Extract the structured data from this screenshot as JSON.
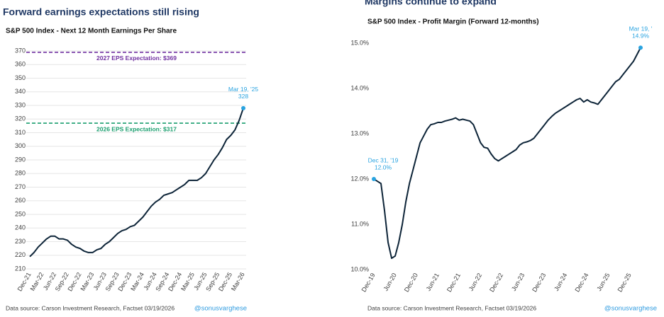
{
  "chart_data": [
    {
      "type": "line",
      "title": "Forward earnings expectations still rising",
      "subtitle": "S&P 500 Index - Next 12 Month Earnings Per Share",
      "x": [
        "Dec-21",
        "Jan-22",
        "Feb-22",
        "Mar-22",
        "Apr-22",
        "May-22",
        "Jun-22",
        "Jul-22",
        "Aug-22",
        "Sep-22",
        "Oct-22",
        "Nov-22",
        "Dec-22",
        "Jan-23",
        "Feb-23",
        "Mar-23",
        "Apr-23",
        "May-23",
        "Jun-23",
        "Jul-23",
        "Aug-23",
        "Sep-23",
        "Oct-23",
        "Nov-23",
        "Dec-23",
        "Jan-24",
        "Feb-24",
        "Mar-24",
        "Apr-24",
        "May-24",
        "Jun-24",
        "Jul-24",
        "Aug-24",
        "Sep-24",
        "Oct-24",
        "Nov-24",
        "Dec-24",
        "Jan-25",
        "Feb-25",
        "Mar-25",
        "Apr-25",
        "May-25",
        "Jun-25",
        "Jul-25",
        "Aug-25",
        "Sep-25",
        "Oct-25",
        "Nov-25",
        "Dec-25",
        "Jan-26",
        "Feb-26",
        "Mar-26"
      ],
      "series": [
        {
          "color": "#0d2438",
          "values": [
            219,
            222,
            226,
            229,
            232,
            234,
            234,
            232,
            232,
            231,
            228,
            226,
            225,
            223,
            222,
            222,
            224,
            225,
            228,
            230,
            233,
            236,
            238,
            239,
            241,
            242,
            245,
            248,
            252,
            256,
            259,
            261,
            264,
            265,
            266,
            268,
            270,
            272,
            275,
            275,
            275,
            277,
            280,
            285,
            290,
            294,
            299,
            305,
            308,
            312,
            319,
            328
          ]
        }
      ],
      "xticks": [
        "Dec-21",
        "Mar-22",
        "Jun-22",
        "Sep-22",
        "Dec-22",
        "Mar-23",
        "Jun-23",
        "Sep-23",
        "Dec-23",
        "Mar-24",
        "Jun-24",
        "Sep-24",
        "Dec-24",
        "Mar-25",
        "Jun-25",
        "Sep-25",
        "Dec-25",
        "Mar-26"
      ],
      "ylim": [
        210,
        370
      ],
      "yticks": [
        210,
        220,
        230,
        240,
        250,
        260,
        270,
        280,
        290,
        300,
        310,
        320,
        330,
        340,
        350,
        360,
        370
      ],
      "grid": true,
      "reference_lines": [
        {
          "value": 369,
          "label": "2027 EPS Expectation: $369",
          "color": "#7030a0"
        },
        {
          "value": 317,
          "label": "2026 EPS Expectation: $317",
          "color": "#1a9e6e"
        }
      ],
      "annotations": [
        {
          "x": "Mar-26",
          "date": "Mar 19, '25",
          "value": 328,
          "label": "328"
        }
      ],
      "point_color": "#29a3e0",
      "source": "Data source: Carson Investment Research, Factset   03/19/2026",
      "handle": "@sonusvarghese"
    },
    {
      "type": "line",
      "title": "Margins continue to expand",
      "subtitle": "S&P 500 Index - Profit Margin (Forward 12-months)",
      "x": [
        "Dec-19",
        "Jan-20",
        "Feb-20",
        "Mar-20",
        "Apr-20",
        "May-20",
        "Jun-20",
        "Jul-20",
        "Aug-20",
        "Sep-20",
        "Oct-20",
        "Nov-20",
        "Dec-20",
        "Jan-21",
        "Feb-21",
        "Mar-21",
        "Apr-21",
        "May-21",
        "Jun-21",
        "Jul-21",
        "Aug-21",
        "Sep-21",
        "Oct-21",
        "Nov-21",
        "Dec-21",
        "Jan-22",
        "Feb-22",
        "Mar-22",
        "Apr-22",
        "May-22",
        "Jun-22",
        "Jul-22",
        "Aug-22",
        "Sep-22",
        "Oct-22",
        "Nov-22",
        "Dec-22",
        "Jan-23",
        "Feb-23",
        "Mar-23",
        "Apr-23",
        "May-23",
        "Jun-23",
        "Jul-23",
        "Aug-23",
        "Sep-23",
        "Oct-23",
        "Nov-23",
        "Dec-23",
        "Jan-24",
        "Feb-24",
        "Mar-24",
        "Apr-24",
        "May-24",
        "Jun-24",
        "Jul-24",
        "Aug-24",
        "Sep-24",
        "Oct-24",
        "Nov-24",
        "Dec-24",
        "Jan-25",
        "Feb-25",
        "Mar-25",
        "Apr-25",
        "May-25",
        "Jun-25",
        "Jul-25",
        "Aug-25",
        "Sep-25",
        "Oct-25",
        "Nov-25",
        "Dec-25",
        "Jan-26",
        "Feb-26",
        "Mar-26"
      ],
      "series": [
        {
          "color": "#0d2438",
          "values": [
            12.0,
            11.95,
            11.9,
            11.3,
            10.6,
            10.25,
            10.3,
            10.6,
            11.0,
            11.5,
            11.9,
            12.2,
            12.5,
            12.8,
            12.95,
            13.1,
            13.2,
            13.22,
            13.25,
            13.25,
            13.28,
            13.3,
            13.32,
            13.35,
            13.3,
            13.32,
            13.3,
            13.28,
            13.2,
            13.0,
            12.8,
            12.7,
            12.68,
            12.55,
            12.45,
            12.4,
            12.45,
            12.5,
            12.55,
            12.6,
            12.65,
            12.75,
            12.8,
            12.82,
            12.85,
            12.9,
            13.0,
            13.1,
            13.2,
            13.3,
            13.38,
            13.45,
            13.5,
            13.55,
            13.6,
            13.65,
            13.7,
            13.75,
            13.78,
            13.7,
            13.75,
            13.7,
            13.68,
            13.65,
            13.75,
            13.85,
            13.95,
            14.05,
            14.15,
            14.2,
            14.3,
            14.4,
            14.5,
            14.6,
            14.75,
            14.9
          ]
        }
      ],
      "xticks": [
        "Dec-19",
        "Jun-20",
        "Dec-20",
        "Jun-21",
        "Dec-21",
        "Jun-22",
        "Dec-22",
        "Jun-23",
        "Dec-23",
        "Jun-24",
        "Dec-24",
        "Jun-25",
        "Dec-25"
      ],
      "ylim": [
        10,
        15
      ],
      "yticks": [
        {
          "value": 10,
          "label": "10.0%"
        },
        {
          "value": 11,
          "label": "11.0%"
        },
        {
          "value": 12,
          "label": "12.0%"
        },
        {
          "value": 13,
          "label": "13.0%"
        },
        {
          "value": 14,
          "label": "14.0%"
        },
        {
          "value": 15,
          "label": "15.0%"
        }
      ],
      "grid": false,
      "annotations": [
        {
          "x": "Dec-19",
          "date": "Dec 31, '19",
          "value": 12.0,
          "label": "12.0%"
        },
        {
          "x": "Mar-26",
          "date": "Mar 19, '",
          "value": 14.9,
          "label": "14.9%"
        }
      ],
      "point_color": "#29a3e0",
      "source": "Data source: Carson Investment Research, Factset   03/19/2026",
      "handle": "@sonusvarghese"
    }
  ]
}
